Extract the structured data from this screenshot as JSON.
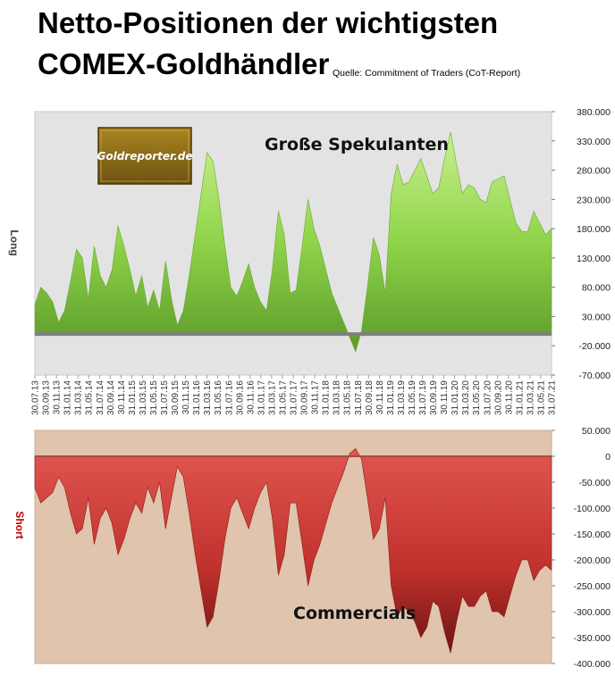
{
  "title_line1": "Netto-Positionen der wichtigsten",
  "title_line2": "COMEX-Goldhändler",
  "source": "Quelle: Commitment of Traders (CoT-Report)",
  "logo": {
    "text": "Goldreporter.de",
    "bg": "#8b6914"
  },
  "colors": {
    "top_plot_bg": "#e3e3e3",
    "top_fill": "#8fd44a",
    "top_fill_dark": "#5c9a2a",
    "bottom_plot_bg": "#e0c4ad",
    "bottom_fill": "#c93c38",
    "bottom_fill_dark": "#6b1412",
    "zero_line": "#808080",
    "short_label": "#c00000",
    "long_label": "#404040"
  },
  "chart_data": [
    {
      "type": "area",
      "annotation": "Große Spekulanten",
      "ylabel": "Long",
      "ylim": [
        -70000,
        380000
      ],
      "yticks": [
        -70000,
        -20000,
        30000,
        80000,
        130000,
        180000,
        230000,
        280000,
        330000,
        380000
      ],
      "ytick_labels": [
        "-70.000",
        "-20.000",
        "30.000",
        "80.000",
        "130.000",
        "180.000",
        "230.000",
        "280.000",
        "330.000",
        "380.000"
      ],
      "x_tick_labels": [
        "30.07.13",
        "30.09.13",
        "30.11.13",
        "31.01.14",
        "31.03.14",
        "31.05.14",
        "31.07.14",
        "30.09.14",
        "30.11.14",
        "31.01.15",
        "31.03.15",
        "31.05.15",
        "31.07.15",
        "30.09.15",
        "30.11.15",
        "31.01.16",
        "31.03.16",
        "31.05.16",
        "31.07.16",
        "30.09.16",
        "30.11.16",
        "31.01.17",
        "31.03.17",
        "31.05.17",
        "31.07.17",
        "30.09.17",
        "30.11.17",
        "31.01.18",
        "31.03.18",
        "31.05.18",
        "31.07.18",
        "30.09.18",
        "30.11.18",
        "31.01.19",
        "31.03.19",
        "31.05.19",
        "31.07.19",
        "30.09.19",
        "30.11.19",
        "31.01.20",
        "31.03.20",
        "31.05.20",
        "31.07.20",
        "30.09.20",
        "30.11.20",
        "31.01.21",
        "31.03.21",
        "31.05.21",
        "31.07.21"
      ],
      "series": [
        {
          "values": [
            50000,
            80000,
            70000,
            55000,
            20000,
            40000,
            90000,
            145000,
            130000,
            60000,
            150000,
            100000,
            80000,
            110000,
            185000,
            150000,
            110000,
            65000,
            100000,
            45000,
            75000,
            40000,
            125000,
            60000,
            15000,
            40000,
            100000,
            170000,
            240000,
            310000,
            295000,
            230000,
            150000,
            80000,
            65000,
            90000,
            120000,
            80000,
            55000,
            40000,
            110000,
            210000,
            170000,
            70000,
            75000,
            150000,
            230000,
            180000,
            150000,
            110000,
            70000,
            45000,
            20000,
            -5000,
            -30000,
            5000,
            80000,
            165000,
            135000,
            70000,
            240000,
            290000,
            255000,
            260000,
            280000,
            300000,
            270000,
            240000,
            250000,
            300000,
            345000,
            290000,
            240000,
            255000,
            250000,
            230000,
            225000,
            260000,
            265000,
            270000,
            230000,
            190000,
            175000,
            175000,
            210000,
            190000,
            170000,
            180000
          ]
        }
      ]
    },
    {
      "type": "area",
      "annotation": "Commercials",
      "ylabel": "Short",
      "ylim": [
        -400000,
        50000
      ],
      "yticks": [
        -400000,
        -350000,
        -300000,
        -250000,
        -200000,
        -150000,
        -100000,
        -50000,
        0,
        50000
      ],
      "ytick_labels": [
        "-400.000",
        "-350.000",
        "-300.000",
        "-250.000",
        "-200.000",
        "-150.000",
        "-100.000",
        "-50.000",
        "0",
        "50.000"
      ],
      "series": [
        {
          "values": [
            -60000,
            -90000,
            -80000,
            -70000,
            -40000,
            -60000,
            -110000,
            -150000,
            -140000,
            -80000,
            -170000,
            -120000,
            -100000,
            -130000,
            -190000,
            -160000,
            -120000,
            -90000,
            -110000,
            -60000,
            -90000,
            -50000,
            -140000,
            -80000,
            -20000,
            -40000,
            -110000,
            -190000,
            -260000,
            -330000,
            -310000,
            -240000,
            -160000,
            -100000,
            -80000,
            -110000,
            -140000,
            -100000,
            -70000,
            -50000,
            -120000,
            -230000,
            -190000,
            -90000,
            -90000,
            -170000,
            -250000,
            -200000,
            -170000,
            -130000,
            -90000,
            -60000,
            -30000,
            5000,
            15000,
            -5000,
            -80000,
            -160000,
            -140000,
            -80000,
            -250000,
            -310000,
            -290000,
            -300000,
            -320000,
            -350000,
            -330000,
            -280000,
            -290000,
            -340000,
            -380000,
            -320000,
            -270000,
            -290000,
            -290000,
            -270000,
            -260000,
            -300000,
            -300000,
            -310000,
            -270000,
            -230000,
            -200000,
            -200000,
            -240000,
            -220000,
            -210000,
            -220000
          ]
        }
      ]
    }
  ]
}
